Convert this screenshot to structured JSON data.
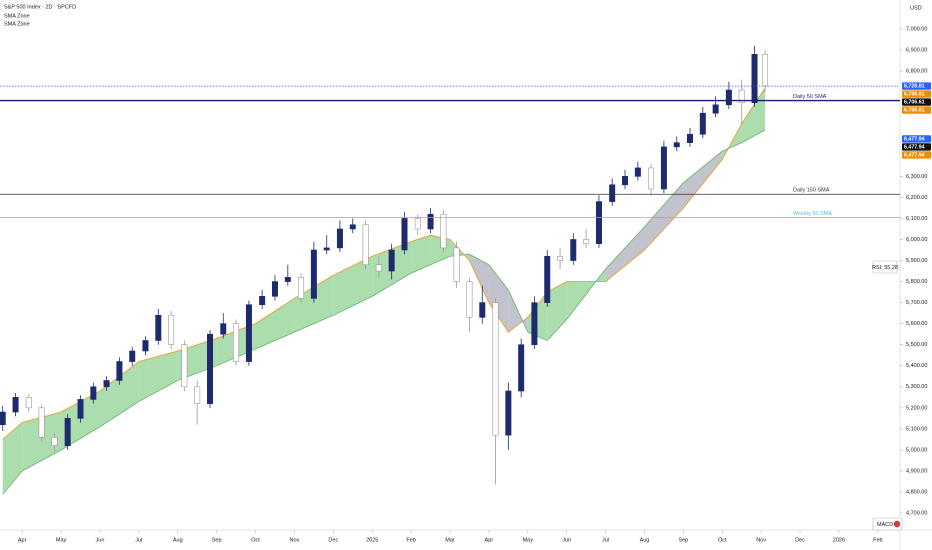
{
  "chart_data": {
    "type": "candlestick",
    "title": "S&P 500 Index · 2D · SPCFD",
    "currency": "USD",
    "x": [
      -0.5,
      -0.17,
      0.17,
      0.5,
      0.83,
      1.17,
      1.5,
      1.83,
      2.17,
      2.5,
      2.83,
      3.17,
      3.5,
      3.83,
      4.17,
      4.5,
      4.83,
      5.17,
      5.5,
      5.83,
      6.17,
      6.5,
      6.83,
      7.17,
      7.5,
      7.83,
      8.17,
      8.5,
      8.83,
      9.17,
      9.5,
      9.83,
      10.17,
      10.5,
      10.83,
      11.17,
      11.5,
      11.83,
      12.17,
      12.5,
      12.83,
      13.17,
      13.5,
      13.83,
      14.17,
      14.5,
      14.83,
      15.17,
      15.5,
      15.83,
      16.17,
      16.5,
      16.83,
      17.17,
      17.5,
      17.83,
      18.17,
      18.5,
      18.83,
      19.1
    ],
    "open": [
      5120,
      5180,
      5250,
      5200,
      5060,
      5020,
      5150,
      5240,
      5300,
      5330,
      5420,
      5470,
      5520,
      5640,
      5500,
      5300,
      5220,
      5550,
      5600,
      5420,
      5690,
      5730,
      5800,
      5820,
      5720,
      5950,
      5960,
      6050,
      6070,
      5880,
      5850,
      5950,
      6100,
      6050,
      6120,
      5960,
      5800,
      5630,
      5700,
      5070,
      5280,
      5500,
      5700,
      5920,
      5900,
      6000,
      5980,
      6180,
      6260,
      6300,
      6340,
      6240,
      6440,
      6460,
      6500,
      6600,
      6640,
      6710,
      6650,
      6880
    ],
    "high": [
      5210,
      5270,
      5265,
      5215,
      5080,
      5170,
      5260,
      5320,
      5350,
      5440,
      5490,
      5540,
      5670,
      5660,
      5520,
      5330,
      5570,
      5650,
      5620,
      5710,
      5760,
      5830,
      5880,
      5840,
      5990,
      6020,
      6090,
      6100,
      6090,
      5920,
      5980,
      6130,
      6120,
      6150,
      6140,
      5990,
      5820,
      5780,
      5720,
      5320,
      5530,
      5730,
      5950,
      5960,
      6030,
      6050,
      6210,
      6290,
      6330,
      6370,
      6360,
      6470,
      6490,
      6530,
      6630,
      6680,
      6750,
      6760,
      6920,
      6900
    ],
    "low": [
      5090,
      5160,
      5180,
      5040,
      4990,
      5000,
      5130,
      5220,
      5280,
      5310,
      5400,
      5450,
      5500,
      5480,
      5280,
      5120,
      5200,
      5530,
      5400,
      5400,
      5670,
      5710,
      5780,
      5700,
      5700,
      5930,
      5940,
      6030,
      5860,
      5820,
      5810,
      5930,
      6020,
      6030,
      5940,
      5770,
      5560,
      5600,
      4835,
      5000,
      5250,
      5480,
      5680,
      5860,
      5880,
      5960,
      5960,
      6160,
      6240,
      6280,
      6210,
      6220,
      6420,
      6440,
      6480,
      6580,
      6620,
      6550,
      6630,
      6700
    ],
    "close": [
      5180,
      5250,
      5200,
      5060,
      5020,
      5150,
      5240,
      5300,
      5330,
      5420,
      5470,
      5520,
      5640,
      5500,
      5300,
      5220,
      5550,
      5600,
      5420,
      5690,
      5730,
      5800,
      5820,
      5720,
      5950,
      5960,
      6050,
      6070,
      5880,
      5850,
      5950,
      6100,
      6050,
      6120,
      5960,
      5800,
      5630,
      5700,
      5070,
      5280,
      5500,
      5700,
      5920,
      5900,
      6000,
      5980,
      6180,
      6260,
      6300,
      6340,
      6240,
      6440,
      6460,
      6500,
      6600,
      6640,
      6710,
      6650,
      6880,
      6729
    ],
    "up_color": "#1e2a6e",
    "down_color": "#9a9a9a",
    "series": [
      {
        "name": "SMA Zone",
        "color": "#e8a030",
        "x": [
          -0.5,
          0,
          1,
          2,
          3,
          4,
          5,
          6,
          7,
          8,
          9,
          10,
          10.5,
          11,
          11.5,
          12,
          12.5,
          13,
          13.5,
          14,
          15,
          16,
          17,
          18,
          18.5,
          19.1
        ],
        "values": [
          5050,
          5130,
          5180,
          5280,
          5420,
          5470,
          5530,
          5600,
          5720,
          5830,
          5920,
          5990,
          6020,
          6000,
          5900,
          5700,
          5560,
          5630,
          5750,
          5800,
          5800,
          5950,
          6150,
          6380,
          6550,
          6720
        ]
      },
      {
        "name": "SMA Zone",
        "color": "#6fb873",
        "x": [
          -0.5,
          0,
          1,
          2,
          3,
          4,
          5,
          6,
          7,
          8,
          9,
          10,
          10.5,
          11,
          11.5,
          12,
          12.5,
          13,
          13.5,
          14,
          15,
          16,
          17,
          18,
          18.5,
          19.1
        ],
        "values": [
          4790,
          4900,
          5000,
          5110,
          5230,
          5330,
          5400,
          5480,
          5560,
          5640,
          5730,
          5840,
          5880,
          5920,
          5930,
          5880,
          5760,
          5560,
          5520,
          5620,
          5860,
          6060,
          6270,
          6420,
          6460,
          6520
        ]
      }
    ],
    "fill_up": "#a3d9a5",
    "fill_down": "#bdbdc8",
    "levels": [
      {
        "label": "Daily 50 SMA",
        "value": 6660,
        "color": "#1a1f6e"
      },
      {
        "label": "Daily 150 SMA",
        "value": 6215,
        "color": "#333333"
      },
      {
        "label": "Weekly 50 SMA",
        "value": 6105,
        "color": "#5bc0de"
      }
    ],
    "price_labels": [
      {
        "value": 6728.81,
        "label": "6,728.81",
        "color": "#2962ff"
      },
      {
        "value": 6706.61,
        "label": "6,706.61",
        "color": "#f08c00"
      },
      {
        "value": 6706.61,
        "label": "6,706.61",
        "color": "#111111"
      },
      {
        "value": 6706.61,
        "label": "6,706.61",
        "color": "#f08c00"
      },
      {
        "value": 6477.94,
        "label": "6,477.94",
        "color": "#2962ff"
      },
      {
        "value": 6477.94,
        "label": "6,477.94",
        "color": "#111111"
      },
      {
        "value": 6477.94,
        "label": "6,477.94",
        "color": "#f08c00"
      }
    ],
    "rsi_label": "RSI: 55.28",
    "macd_label": "MACD:",
    "xlim": [
      -0.57,
      22.57
    ],
    "ylim": [
      4629,
      7138
    ],
    "xticks": [
      {
        "value": 0,
        "label": "Apr"
      },
      {
        "value": 1,
        "label": "May"
      },
      {
        "value": 2,
        "label": "Jun"
      },
      {
        "value": 3,
        "label": "Jul"
      },
      {
        "value": 4,
        "label": "Aug"
      },
      {
        "value": 5,
        "label": "Sep"
      },
      {
        "value": 6,
        "label": "Oct"
      },
      {
        "value": 7,
        "label": "Nov"
      },
      {
        "value": 8,
        "label": "Dec"
      },
      {
        "value": 9,
        "label": "2025"
      },
      {
        "value": 10,
        "label": "Feb"
      },
      {
        "value": 11,
        "label": "Mar"
      },
      {
        "value": 12,
        "label": "Apr"
      },
      {
        "value": 13,
        "label": "May"
      },
      {
        "value": 14,
        "label": "Jun"
      },
      {
        "value": 15,
        "label": "Jul"
      },
      {
        "value": 16,
        "label": "Aug"
      },
      {
        "value": 17,
        "label": "Sep"
      },
      {
        "value": 18,
        "label": "Oct"
      },
      {
        "value": 19,
        "label": "Nov"
      },
      {
        "value": 20,
        "label": "Dec"
      },
      {
        "value": 21,
        "label": "2026"
      },
      {
        "value": 22,
        "label": "Feb"
      }
    ],
    "yticks": [
      {
        "value": 7000,
        "label": "7,000.00"
      },
      {
        "value": 6900,
        "label": "6,900.00"
      },
      {
        "value": 6800,
        "label": "6,800.00"
      },
      {
        "value": 6300,
        "label": "6,300.00"
      },
      {
        "value": 6200,
        "label": "6,200.00"
      },
      {
        "value": 6100,
        "label": "6,100.00"
      },
      {
        "value": 6000,
        "label": "6,000.00"
      },
      {
        "value": 5900,
        "label": "5,900.00"
      },
      {
        "value": 5800,
        "label": "5,800.00"
      },
      {
        "value": 5700,
        "label": "5,700.00"
      },
      {
        "value": 5600,
        "label": "5,600.00"
      },
      {
        "value": 5500,
        "label": "5,500.00"
      },
      {
        "value": 5400,
        "label": "5,400.00"
      },
      {
        "value": 5300,
        "label": "5,300.00"
      },
      {
        "value": 5200,
        "label": "5,200.00"
      },
      {
        "value": 5100,
        "label": "5,100.00"
      },
      {
        "value": 5000,
        "label": "5,000.00"
      },
      {
        "value": 4900,
        "label": "4,900.00"
      },
      {
        "value": 4800,
        "label": "4,800.00"
      },
      {
        "value": 4700,
        "label": "4,700.00"
      }
    ]
  }
}
